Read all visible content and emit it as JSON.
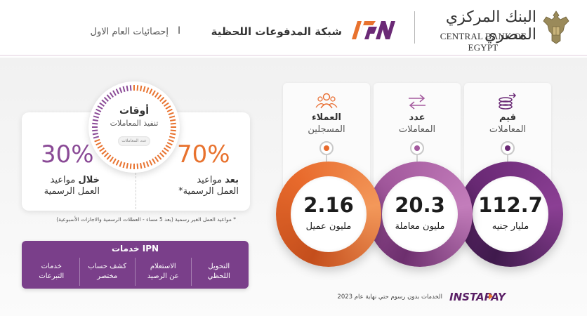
{
  "header": {
    "bank_name_ar": "البنك المركزي المصري",
    "bank_name_en": "CENTRAL BANK OF EGYPT",
    "ipn_logo_text": "IPN",
    "title": "شبكة المدفوعات اللحظية",
    "separator": "I",
    "subtitle": "إحصائيات العام الاول"
  },
  "metrics": [
    {
      "label_line1": "قيم",
      "label_line2": "المعاملات",
      "value": "112.7",
      "unit": "مليار جنيه",
      "icon": "coins-arrow-icon",
      "color": "#6b2a76"
    },
    {
      "label_line1": "عدد",
      "label_line2": "المعاملات",
      "value": "20.3",
      "unit": "مليون معاملة",
      "icon": "transfer-arrows-icon",
      "color": "#a45a9e"
    },
    {
      "label_line1": "العملاء",
      "label_line2": "المسجلين",
      "value": "2.16",
      "unit": "مليون عميل",
      "icon": "users-group-icon",
      "color": "#e86a2c"
    }
  ],
  "hours": {
    "clock_title": "أوقات",
    "clock_subtitle": "تنفيذ المعاملات",
    "clock_pill": "عدد المعاملات",
    "left_percent": "30%",
    "left_label_bold": "خلال",
    "left_label_rest": "مواعيد",
    "left_label_line2": "العمل الرسمية",
    "right_percent": "70%",
    "right_label_bold": "بعد",
    "right_label_rest": "مواعيد",
    "right_label_line2": "العمل الرسمية*",
    "left_color": "#8a4a96",
    "right_color": "#e8722e"
  },
  "footnote": "* مواعيد العمل الغير رسمية (بعد 5 مساء - العطلات الرسمية والاجازات الأسبوعية)",
  "services": {
    "title": "خدمات IPN",
    "items": [
      {
        "line1": "التحويل",
        "line2": "اللحظي"
      },
      {
        "line1": "الاستعلام",
        "line2": "عن الرصيد"
      },
      {
        "line1": "كشف حساب",
        "line2": "مختصر"
      },
      {
        "line1": "خدمات",
        "line2": "التبرعات"
      }
    ]
  },
  "footer": {
    "instapay_logo": "INSTAPAY",
    "free_note": "الخدمات بدون رسوم حتي نهاية عام 2023"
  },
  "colors": {
    "purple_dark": "#6b2a76",
    "purple_mid": "#a45a9e",
    "orange": "#e86a2c"
  }
}
